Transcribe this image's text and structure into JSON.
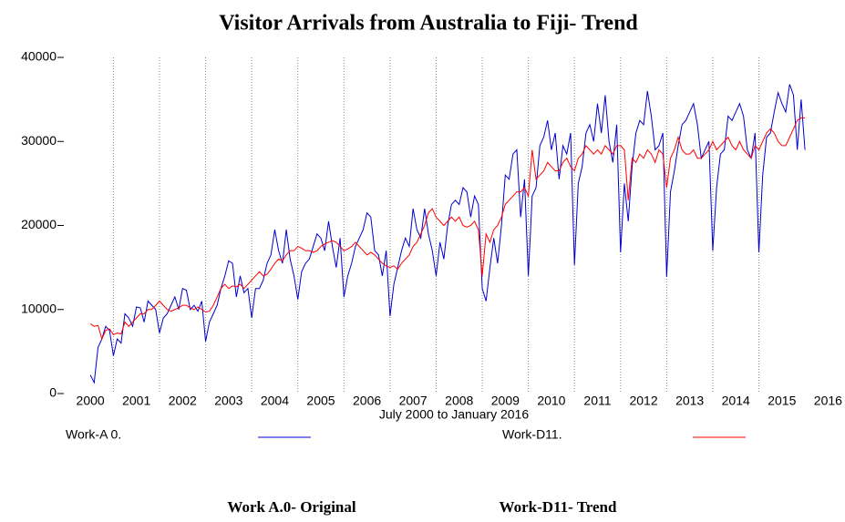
{
  "chart_data": {
    "type": "line",
    "title": "Visitor Arrivals from Australia to Fiji- Trend",
    "x_label": "July 2000  to January 2016",
    "caption_items": [
      "Work A.0- Original",
      "Work-D11- Trend"
    ],
    "x": [
      2000.5,
      2000.583,
      2000.667,
      2000.75,
      2000.833,
      2000.917,
      2001,
      2001.083,
      2001.167,
      2001.25,
      2001.333,
      2001.417,
      2001.5,
      2001.583,
      2001.667,
      2001.75,
      2001.833,
      2001.917,
      2002,
      2002.083,
      2002.167,
      2002.25,
      2002.333,
      2002.417,
      2002.5,
      2002.583,
      2002.667,
      2002.75,
      2002.833,
      2002.917,
      2003,
      2003.083,
      2003.167,
      2003.25,
      2003.333,
      2003.417,
      2003.5,
      2003.583,
      2003.667,
      2003.75,
      2003.833,
      2003.917,
      2004,
      2004.083,
      2004.167,
      2004.25,
      2004.333,
      2004.417,
      2004.5,
      2004.583,
      2004.667,
      2004.75,
      2004.833,
      2004.917,
      2005,
      2005.083,
      2005.167,
      2005.25,
      2005.333,
      2005.417,
      2005.5,
      2005.583,
      2005.667,
      2005.75,
      2005.833,
      2005.917,
      2006,
      2006.083,
      2006.167,
      2006.25,
      2006.333,
      2006.417,
      2006.5,
      2006.583,
      2006.667,
      2006.75,
      2006.833,
      2006.917,
      2007,
      2007.083,
      2007.167,
      2007.25,
      2007.333,
      2007.417,
      2007.5,
      2007.583,
      2007.667,
      2007.75,
      2007.833,
      2007.917,
      2008,
      2008.083,
      2008.167,
      2008.25,
      2008.333,
      2008.417,
      2008.5,
      2008.583,
      2008.667,
      2008.75,
      2008.833,
      2008.917,
      2009,
      2009.083,
      2009.167,
      2009.25,
      2009.333,
      2009.417,
      2009.5,
      2009.583,
      2009.667,
      2009.75,
      2009.833,
      2009.917,
      2010,
      2010.083,
      2010.167,
      2010.25,
      2010.333,
      2010.417,
      2010.5,
      2010.583,
      2010.667,
      2010.75,
      2010.833,
      2010.917,
      2011,
      2011.083,
      2011.167,
      2011.25,
      2011.333,
      2011.417,
      2011.5,
      2011.583,
      2011.667,
      2011.75,
      2011.833,
      2011.917,
      2012,
      2012.083,
      2012.167,
      2012.25,
      2012.333,
      2012.417,
      2012.5,
      2012.583,
      2012.667,
      2012.75,
      2012.833,
      2012.917,
      2013,
      2013.083,
      2013.167,
      2013.25,
      2013.333,
      2013.417,
      2013.5,
      2013.583,
      2013.667,
      2013.75,
      2013.833,
      2013.917,
      2014,
      2014.083,
      2014.167,
      2014.25,
      2014.333,
      2014.417,
      2014.5,
      2014.583,
      2014.667,
      2014.75,
      2014.833,
      2014.917,
      2015,
      2015.083,
      2015.167,
      2015.25,
      2015.333,
      2015.417,
      2015.5,
      2015.583,
      2015.667,
      2015.75,
      2015.833,
      2015.917,
      2016
    ],
    "series": [
      {
        "name": "Work-A 0.",
        "color": "#0000cc",
        "values": [
          2200,
          1300,
          5500,
          6500,
          8000,
          7500,
          4500,
          6500,
          6000,
          9500,
          9000,
          8000,
          10300,
          10200,
          8500,
          11000,
          10500,
          10000,
          7200,
          9000,
          9500,
          10500,
          11500,
          10000,
          12500,
          12300,
          10000,
          10500,
          9800,
          11000,
          6200,
          8500,
          9500,
          10500,
          12500,
          14000,
          15800,
          15500,
          11500,
          14000,
          12000,
          12500,
          9000,
          12500,
          12500,
          13500,
          15500,
          16500,
          19500,
          17000,
          15500,
          19500,
          16000,
          14000,
          11200,
          14500,
          15500,
          16000,
          17500,
          19000,
          18500,
          17000,
          20500,
          17500,
          15000,
          18500,
          11500,
          14000,
          15500,
          17500,
          18500,
          19500,
          21500,
          21000,
          17000,
          16500,
          14000,
          17000,
          9200,
          13000,
          15000,
          17000,
          18500,
          17500,
          22000,
          19500,
          18500,
          22000,
          19000,
          17000,
          14000,
          18000,
          16000,
          20000,
          22500,
          23000,
          22500,
          24500,
          24000,
          21000,
          23500,
          22500,
          12500,
          11000,
          15000,
          18500,
          15500,
          20000,
          26000,
          25500,
          28500,
          29000,
          21000,
          25500,
          14000,
          23500,
          24500,
          29500,
          30500,
          32500,
          29000,
          31000,
          25500,
          29500,
          28500,
          31000,
          15300,
          25000,
          27000,
          31000,
          32000,
          30000,
          34500,
          31000,
          35500,
          30000,
          27500,
          32000,
          16800,
          25000,
          20500,
          27000,
          31000,
          32500,
          32000,
          36000,
          33000,
          29000,
          29500,
          31000,
          13900,
          24000,
          26500,
          29500,
          32000,
          32500,
          33500,
          34500,
          32000,
          28000,
          29000,
          30000,
          17000,
          24500,
          28500,
          29000,
          33000,
          32500,
          33500,
          34500,
          33000,
          29000,
          28000,
          31000,
          16800,
          26000,
          30500,
          31000,
          33500,
          35800,
          34500,
          33500,
          36800,
          35500,
          29000,
          35000,
          29000
        ]
      },
      {
        "name": "Work-D11.",
        "color": "#ff0000",
        "values": [
          8300,
          8000,
          8100,
          6500,
          7500,
          7700,
          7000,
          7200,
          7100,
          8500,
          8000,
          8500,
          9000,
          9500,
          9500,
          10000,
          10000,
          10500,
          11000,
          10500,
          10000,
          9800,
          10000,
          10200,
          10500,
          10500,
          10200,
          10000,
          10300,
          10000,
          9700,
          9800,
          10500,
          11500,
          12500,
          13000,
          12500,
          12800,
          12700,
          13000,
          12500,
          13000,
          13500,
          14000,
          14500,
          14000,
          14200,
          14800,
          15500,
          16000,
          15800,
          16500,
          17000,
          17000,
          17500,
          17300,
          17000,
          17000,
          16800,
          17000,
          17500,
          17800,
          18000,
          18200,
          18000,
          17500,
          17000,
          17200,
          17500,
          18000,
          17500,
          17000,
          16500,
          16800,
          16500,
          16000,
          15500,
          15200,
          15000,
          15200,
          14800,
          15500,
          16000,
          16500,
          17500,
          18000,
          19000,
          20000,
          21500,
          22000,
          21000,
          20500,
          20000,
          20500,
          21000,
          20500,
          21000,
          20000,
          19800,
          20000,
          20500,
          19500,
          14000,
          19000,
          18000,
          19500,
          20000,
          21000,
          22500,
          23000,
          23500,
          24000,
          24000,
          24500,
          23500,
          29000,
          25500,
          26000,
          26500,
          27500,
          27000,
          26500,
          26500,
          27500,
          28000,
          27000,
          26500,
          28000,
          28500,
          29500,
          29000,
          28500,
          29000,
          28500,
          29500,
          29000,
          28500,
          29500,
          29500,
          29000,
          23000,
          28000,
          27500,
          28500,
          28000,
          29000,
          28500,
          27500,
          29000,
          28500,
          24500,
          28000,
          29000,
          30500,
          29000,
          28500,
          28500,
          29000,
          28000,
          28000,
          28500,
          29000,
          30000,
          29000,
          29500,
          30000,
          30500,
          29500,
          29000,
          30000,
          29000,
          28500,
          28000,
          29500,
          29000,
          30000,
          31000,
          31500,
          31000,
          30000,
          29500,
          29500,
          30500,
          31500,
          32500,
          32800,
          32800
        ]
      }
    ],
    "xlim": [
      2000.3,
      2016.7
    ],
    "xticks": [
      {
        "value": 2000.5,
        "label": "2000"
      },
      {
        "value": 2001.5,
        "label": "2001"
      },
      {
        "value": 2002.5,
        "label": "2002"
      },
      {
        "value": 2003.5,
        "label": "2003"
      },
      {
        "value": 2004.5,
        "label": "2004"
      },
      {
        "value": 2005.5,
        "label": "2005"
      },
      {
        "value": 2006.5,
        "label": "2006"
      },
      {
        "value": 2007.5,
        "label": "2007"
      },
      {
        "value": 2008.5,
        "label": "2008"
      },
      {
        "value": 2009.5,
        "label": "2009"
      },
      {
        "value": 2010.5,
        "label": "2010"
      },
      {
        "value": 2011.5,
        "label": "2011"
      },
      {
        "value": 2012.5,
        "label": "2012"
      },
      {
        "value": 2013.5,
        "label": "2013"
      },
      {
        "value": 2014.5,
        "label": "2014"
      },
      {
        "value": 2015.5,
        "label": "2015"
      },
      {
        "value": 2016.5,
        "label": "2016"
      }
    ],
    "xgrid": [
      2001,
      2002,
      2003,
      2004,
      2005,
      2006,
      2007,
      2008,
      2009,
      2010,
      2011,
      2012,
      2013,
      2014,
      2015
    ],
    "ylim": [
      0,
      40000
    ],
    "yticks": [
      0,
      10000,
      20000,
      30000,
      40000
    ]
  }
}
